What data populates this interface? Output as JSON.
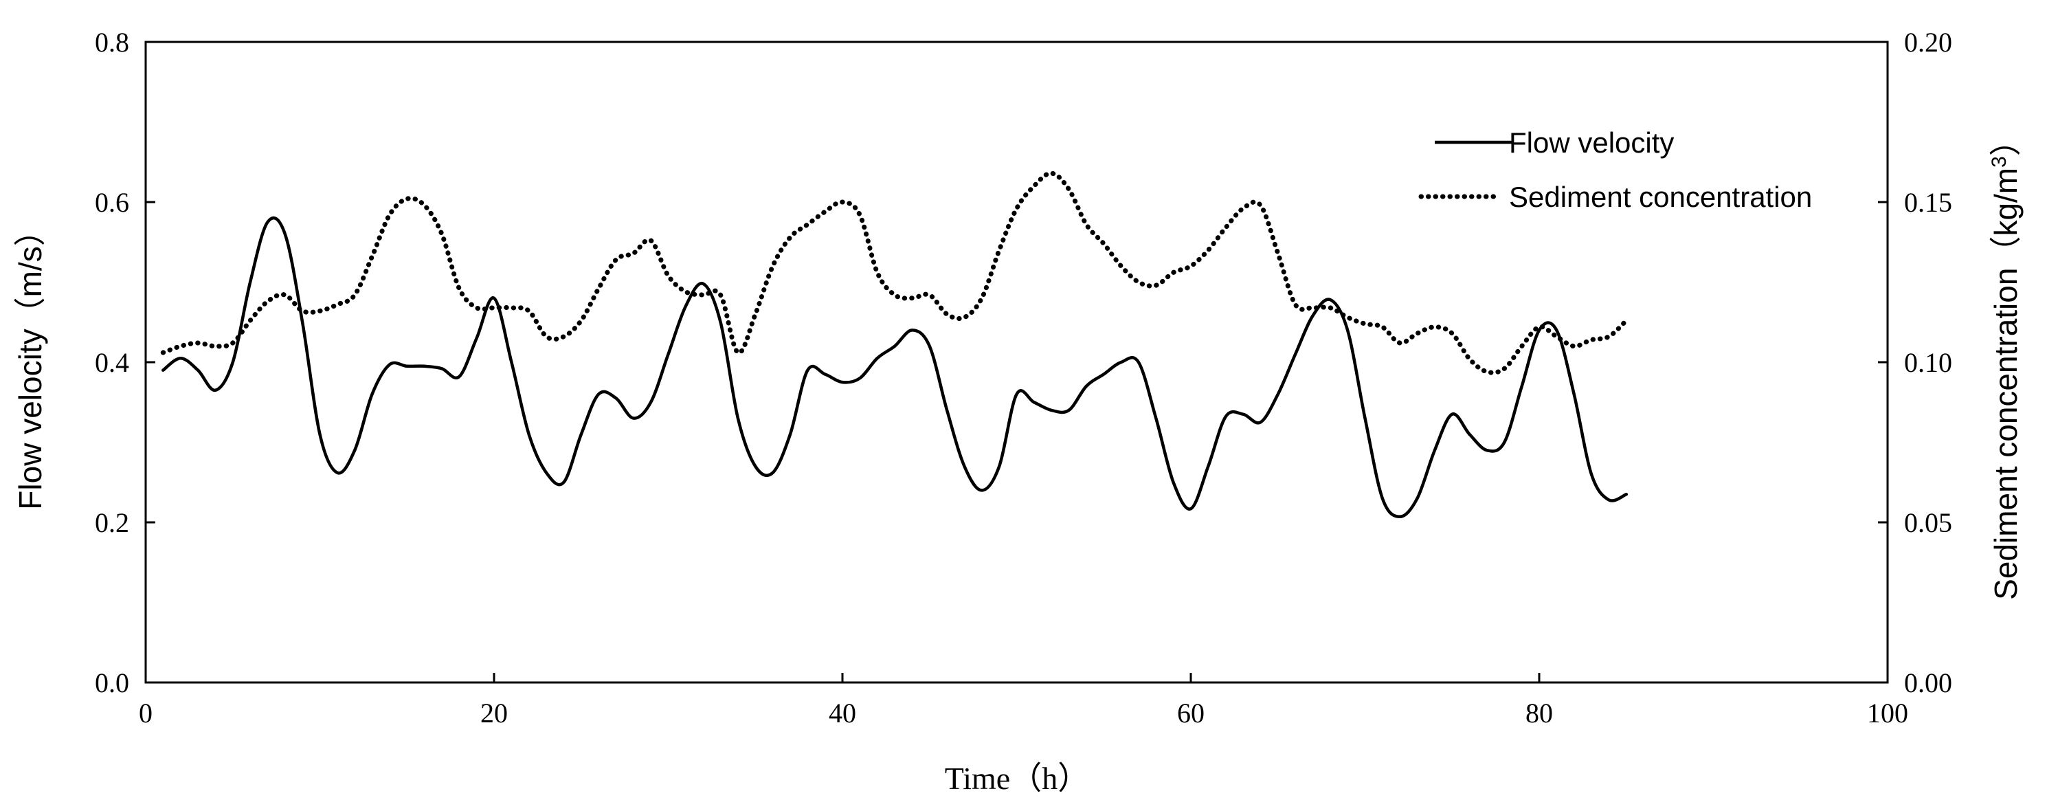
{
  "chart_data": {
    "type": "line",
    "xlabel": "Time（h）",
    "ylabel_left": "Flow velocity（m/s）",
    "ylabel_right_main": "Sediment concentration（kg/m",
    "ylabel_right_sup": "3",
    "ylabel_right_end": "）",
    "xlim": [
      0,
      100
    ],
    "ylim_left": [
      0,
      0.8
    ],
    "ylim_right": [
      0,
      0.2
    ],
    "x_ticks": [
      0,
      20,
      40,
      60,
      80,
      100
    ],
    "x_tick_labels": [
      "0",
      "20",
      "40",
      "60",
      "80",
      "100"
    ],
    "y_left_ticks": [
      0,
      0.2,
      0.4,
      0.6,
      0.8
    ],
    "y_left_tick_labels": [
      "0.0",
      "0.2",
      "0.4",
      "0.6",
      "0.8"
    ],
    "y_right_ticks": [
      0,
      0.05,
      0.1,
      0.15,
      0.2
    ],
    "y_right_tick_labels": [
      "0.00",
      "0.05",
      "0.10",
      "0.15",
      "0.20"
    ],
    "grid": false,
    "legend_position": "top-right",
    "series": [
      {
        "name": "Flow velocity",
        "axis": "left",
        "style": "solid",
        "color": "#000000",
        "x": [
          1,
          2,
          3,
          4,
          5,
          6,
          7,
          8,
          9,
          10,
          11,
          12,
          13,
          14,
          15,
          16,
          17,
          18,
          19,
          20,
          21,
          22,
          23,
          24,
          25,
          26,
          27,
          28,
          29,
          30,
          31,
          32,
          33,
          34,
          35,
          36,
          37,
          38,
          39,
          40,
          41,
          42,
          43,
          44,
          45,
          46,
          47,
          48,
          49,
          50,
          51,
          52,
          53,
          54,
          55,
          56,
          57,
          58,
          59,
          60,
          61,
          62,
          63,
          64,
          65,
          66,
          67,
          68,
          69,
          70,
          71,
          72,
          73,
          74,
          75,
          76,
          77,
          78,
          79,
          80,
          81,
          82,
          83,
          84,
          85
        ],
        "values": [
          0.39,
          0.405,
          0.39,
          0.365,
          0.4,
          0.5,
          0.575,
          0.56,
          0.45,
          0.31,
          0.262,
          0.29,
          0.36,
          0.397,
          0.395,
          0.395,
          0.392,
          0.382,
          0.43,
          0.48,
          0.4,
          0.31,
          0.262,
          0.25,
          0.31,
          0.36,
          0.355,
          0.33,
          0.35,
          0.41,
          0.47,
          0.498,
          0.45,
          0.33,
          0.27,
          0.262,
          0.31,
          0.39,
          0.385,
          0.375,
          0.38,
          0.405,
          0.42,
          0.44,
          0.42,
          0.34,
          0.27,
          0.24,
          0.27,
          0.36,
          0.35,
          0.34,
          0.34,
          0.37,
          0.385,
          0.4,
          0.4,
          0.33,
          0.25,
          0.217,
          0.27,
          0.332,
          0.335,
          0.325,
          0.36,
          0.41,
          0.458,
          0.478,
          0.44,
          0.33,
          0.23,
          0.207,
          0.23,
          0.29,
          0.335,
          0.31,
          0.29,
          0.3,
          0.37,
          0.44,
          0.44,
          0.36,
          0.26,
          0.228,
          0.235
        ]
      },
      {
        "name": "Sediment concentration",
        "axis": "right",
        "style": "dotted",
        "color": "#000000",
        "x": [
          1,
          2,
          3,
          4,
          5,
          6,
          7,
          8,
          9,
          10,
          11,
          12,
          13,
          14,
          15,
          16,
          17,
          18,
          19,
          20,
          21,
          22,
          23,
          24,
          25,
          26,
          27,
          28,
          29,
          30,
          31,
          32,
          33,
          34,
          35,
          36,
          37,
          38,
          39,
          40,
          41,
          42,
          43,
          44,
          45,
          46,
          47,
          48,
          49,
          50,
          51,
          52,
          53,
          54,
          55,
          56,
          57,
          58,
          59,
          60,
          61,
          62,
          63,
          64,
          65,
          66,
          67,
          68,
          69,
          70,
          71,
          72,
          73,
          74,
          75,
          76,
          77,
          78,
          79,
          80,
          81,
          82,
          83,
          84,
          85
        ],
        "values": [
          0.103,
          0.105,
          0.106,
          0.105,
          0.106,
          0.113,
          0.119,
          0.121,
          0.116,
          0.116,
          0.118,
          0.121,
          0.133,
          0.146,
          0.151,
          0.149,
          0.14,
          0.123,
          0.117,
          0.117,
          0.117,
          0.116,
          0.108,
          0.108,
          0.113,
          0.123,
          0.132,
          0.134,
          0.138,
          0.127,
          0.122,
          0.121,
          0.121,
          0.103,
          0.115,
          0.13,
          0.139,
          0.143,
          0.147,
          0.15,
          0.146,
          0.128,
          0.121,
          0.12,
          0.121,
          0.115,
          0.114,
          0.12,
          0.135,
          0.148,
          0.155,
          0.159,
          0.154,
          0.143,
          0.137,
          0.13,
          0.125,
          0.124,
          0.128,
          0.13,
          0.135,
          0.142,
          0.148,
          0.149,
          0.134,
          0.118,
          0.117,
          0.117,
          0.114,
          0.112,
          0.111,
          0.106,
          0.109,
          0.111,
          0.109,
          0.101,
          0.097,
          0.098,
          0.105,
          0.111,
          0.108,
          0.105,
          0.107,
          0.108,
          0.113
        ]
      }
    ]
  }
}
